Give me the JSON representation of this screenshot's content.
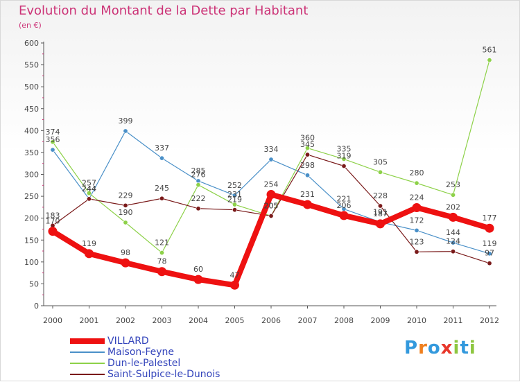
{
  "header": {
    "title": "Evolution du Montant de la Dette par Habitant",
    "subtitle": "(en €)"
  },
  "logo": {
    "text": "Proxiti",
    "letters": [
      "P",
      "r",
      "o",
      "x",
      "i",
      "t",
      "i"
    ],
    "colors": [
      "#3399dd",
      "#f07f1e",
      "#3399dd",
      "#e8372b",
      "#8dc63f",
      "#3399dd",
      "#8dc63f"
    ]
  },
  "chart_data": {
    "type": "line",
    "title": "Evolution du Montant de la Dette par Habitant",
    "subtitle": "(en €)",
    "xlabel": "",
    "ylabel": "",
    "x": [
      "2000",
      "2001",
      "2002",
      "2003",
      "2004",
      "2005",
      "2006",
      "2007",
      "2008",
      "2009",
      "2010",
      "2011",
      "2012"
    ],
    "ylim": [
      0,
      600
    ],
    "yticks": [
      0,
      50,
      100,
      150,
      200,
      250,
      300,
      350,
      400,
      450,
      500,
      550,
      600
    ],
    "grid": false,
    "legend_position": "bottom-left",
    "series": [
      {
        "name": "VILLARD",
        "color": "#ee1111",
        "values": [
          170,
          119,
          98,
          78,
          60,
          47,
          254,
          231,
          206,
          187,
          224,
          202,
          177
        ],
        "labels": [
          "170",
          "119",
          "98",
          "78",
          "60",
          "47",
          "254",
          "231",
          "206",
          "187",
          "224",
          "202",
          "177"
        ]
      },
      {
        "name": "Maison-Feyne",
        "color": "#4a90c8",
        "values": [
          356,
          244,
          399,
          337,
          285,
          252,
          334,
          298,
          221,
          191,
          172,
          144,
          119
        ],
        "labels": [
          "356",
          "244",
          "399",
          "337",
          "285",
          "252",
          "334",
          "298",
          "221",
          "191",
          "172",
          "144",
          "119"
        ]
      },
      {
        "name": "Dun-le-Palestel",
        "color": "#8dd148",
        "values": [
          374,
          257,
          190,
          121,
          276,
          231,
          205,
          360,
          335,
          305,
          280,
          253,
          561
        ],
        "labels": [
          "374",
          "257",
          "190",
          "121",
          "276",
          "231",
          "205",
          "360",
          "335",
          "305",
          "280",
          "253",
          "561"
        ]
      },
      {
        "name": "Saint-Sulpice-le-Dunois",
        "color": "#7a1a1a",
        "values": [
          183,
          244,
          229,
          245,
          222,
          219,
          205,
          345,
          319,
          228,
          123,
          124,
          97
        ],
        "labels": [
          "183",
          "244",
          "229",
          "245",
          "222",
          "219",
          "205",
          "345",
          "319",
          "228",
          "123",
          "124",
          "97"
        ]
      }
    ]
  }
}
